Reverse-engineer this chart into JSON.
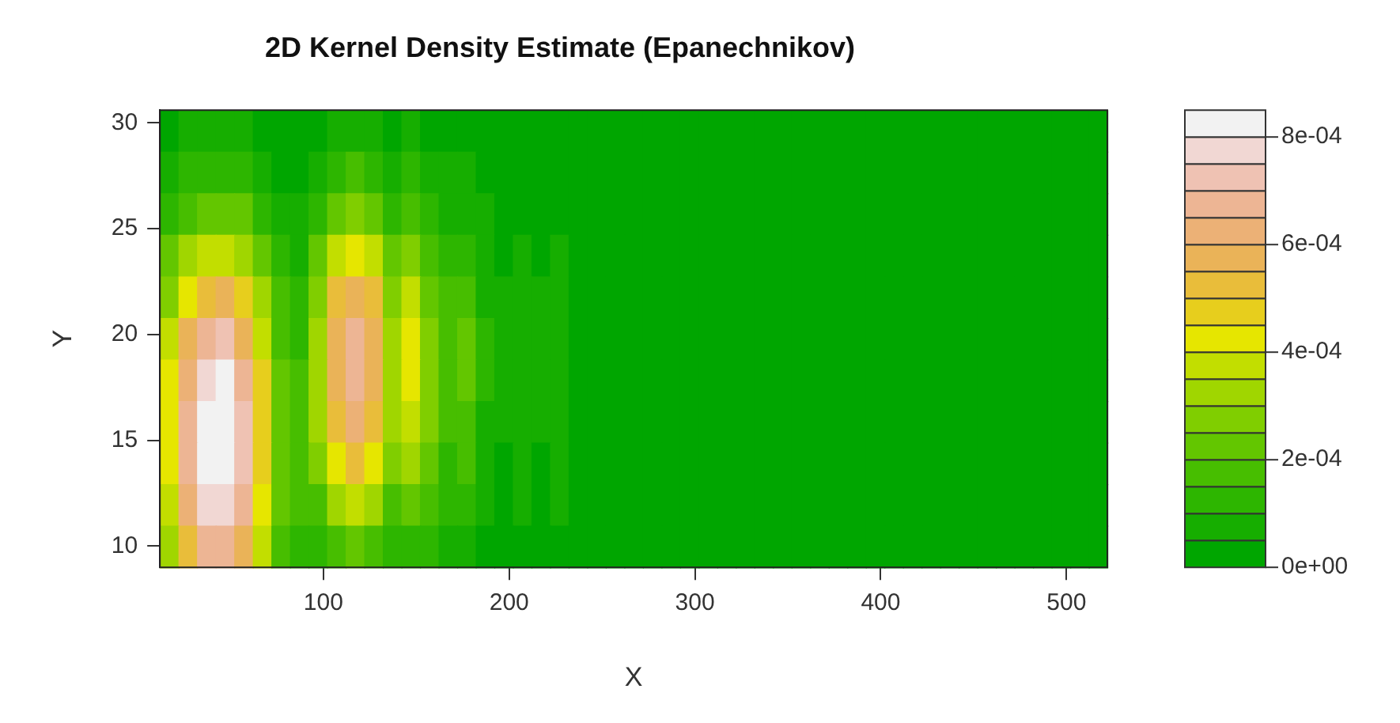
{
  "chart_data": {
    "type": "heatmap",
    "title": "2D Kernel Density Estimate (Epanechnikov)",
    "xlabel": "X",
    "ylabel": "Y",
    "x": [
      17,
      27,
      37,
      47,
      57,
      67,
      77,
      87,
      97,
      107,
      117,
      127,
      137,
      147,
      157,
      167,
      177,
      187,
      197,
      207,
      217,
      227,
      237,
      247,
      257,
      267,
      277,
      287,
      297,
      307,
      317,
      327,
      337,
      347,
      357,
      367,
      377,
      387,
      397,
      407,
      417,
      427,
      437,
      447,
      457,
      467,
      477,
      487,
      497,
      507,
      517
    ],
    "y": [
      29.62,
      27.66,
      25.69,
      23.73,
      21.76,
      19.8,
      17.84,
      15.87,
      13.91,
      11.95,
      9.98
    ],
    "xlim": [
      12,
      522
    ],
    "xticks": [
      100,
      200,
      300,
      400,
      500
    ],
    "ylim": [
      9,
      30.6
    ],
    "yticks": [
      10,
      15,
      20,
      25,
      30
    ],
    "clim": [
      0,
      0.00085
    ],
    "cticks": [
      {
        "value": 0,
        "label": "0e+00"
      },
      {
        "value": 0.0002,
        "label": "2e-04"
      },
      {
        "value": 0.0004,
        "label": "4e-04"
      },
      {
        "value": 0.0006,
        "label": "6e-04"
      },
      {
        "value": 0.0008,
        "label": "8e-04"
      }
    ],
    "colors": [
      "#00a600",
      "#16ae00",
      "#2db600",
      "#47be00",
      "#63c600",
      "#80ce00",
      "#a0d600",
      "#c2de00",
      "#e6e600",
      "#e7ce1d",
      "#e9bd3a",
      "#eab358",
      "#ecb176",
      "#edb594",
      "#efc2b3",
      "#f1d7d3",
      "#f2f2f2"
    ],
    "cells": [
      [
        0,
        5e-05,
        5e-05,
        5e-05,
        5e-05,
        0,
        0,
        0,
        0,
        5e-05,
        5e-05,
        5e-05,
        0,
        5e-05,
        0,
        0,
        0,
        0,
        0,
        0,
        0,
        0,
        0,
        0,
        0,
        0,
        0,
        0,
        0,
        0,
        0,
        0,
        0,
        0,
        0,
        0,
        0,
        0,
        0,
        0,
        0,
        0,
        0,
        0,
        0,
        0,
        0,
        0,
        0,
        0,
        0
      ],
      [
        5e-05,
        0.0001,
        0.0001,
        0.0001,
        0.0001,
        5e-05,
        0,
        0,
        5e-05,
        0.0001,
        0.00015,
        0.0001,
        5e-05,
        0.0001,
        5e-05,
        5e-05,
        5e-05,
        0,
        0,
        0,
        0,
        0,
        0,
        0,
        0,
        0,
        0,
        0,
        0,
        0,
        0,
        0,
        0,
        0,
        0,
        0,
        0,
        0,
        0,
        0,
        0,
        0,
        0,
        0,
        0,
        0,
        0,
        0,
        0,
        0,
        0
      ],
      [
        0.0001,
        0.00015,
        0.0002,
        0.0002,
        0.0002,
        0.0001,
        5e-05,
        5e-05,
        0.0001,
        0.0002,
        0.00025,
        0.0002,
        0.0001,
        0.00015,
        0.0001,
        5e-05,
        5e-05,
        5e-05,
        0,
        0,
        0,
        0,
        0,
        0,
        0,
        0,
        0,
        0,
        0,
        0,
        0,
        0,
        0,
        0,
        0,
        0,
        0,
        0,
        0,
        0,
        0,
        0,
        0,
        0,
        0,
        0,
        0,
        0,
        0,
        0,
        0
      ],
      [
        0.0002,
        0.0003,
        0.00035,
        0.00035,
        0.0003,
        0.0002,
        0.0001,
        5e-05,
        0.0002,
        0.00035,
        0.0004,
        0.00035,
        0.0002,
        0.00025,
        0.00015,
        0.0001,
        0.0001,
        5e-05,
        0,
        5e-05,
        0,
        5e-05,
        0,
        0,
        0,
        0,
        0,
        0,
        0,
        0,
        0,
        0,
        0,
        0,
        0,
        0,
        0,
        0,
        0,
        0,
        0,
        0,
        0,
        0,
        0,
        0,
        0,
        0,
        0,
        0,
        0
      ],
      [
        0.00025,
        0.0004,
        0.0005,
        0.00055,
        0.00045,
        0.0003,
        0.00015,
        0.0001,
        0.00025,
        0.0005,
        0.00055,
        0.0005,
        0.00025,
        0.00035,
        0.0002,
        0.00015,
        0.00015,
        5e-05,
        5e-05,
        5e-05,
        5e-05,
        5e-05,
        0,
        0,
        0,
        0,
        0,
        0,
        0,
        0,
        0,
        0,
        0,
        0,
        0,
        0,
        0,
        0,
        0,
        0,
        0,
        0,
        0,
        0,
        0,
        0,
        0,
        0,
        0,
        0,
        0
      ],
      [
        0.00035,
        0.00055,
        0.00065,
        0.0007,
        0.00055,
        0.00035,
        0.00015,
        0.0001,
        0.0003,
        0.00055,
        0.00065,
        0.00055,
        0.0003,
        0.0004,
        0.00025,
        0.00015,
        0.0002,
        0.0001,
        5e-05,
        5e-05,
        5e-05,
        5e-05,
        0,
        0,
        0,
        0,
        0,
        0,
        0,
        0,
        0,
        0,
        0,
        0,
        0,
        0,
        0,
        0,
        0,
        0,
        0,
        0,
        0,
        0,
        0,
        0,
        0,
        0,
        0,
        0,
        0
      ],
      [
        0.0004,
        0.0006,
        0.00075,
        0.0008,
        0.00065,
        0.00045,
        0.0002,
        0.00015,
        0.0003,
        0.00055,
        0.00065,
        0.00055,
        0.0003,
        0.0004,
        0.00025,
        0.00015,
        0.0002,
        0.0001,
        5e-05,
        5e-05,
        5e-05,
        5e-05,
        0,
        0,
        0,
        0,
        0,
        0,
        0,
        0,
        0,
        0,
        0,
        0,
        0,
        0,
        0,
        0,
        0,
        0,
        0,
        0,
        0,
        0,
        0,
        0,
        0,
        0,
        0,
        0,
        0
      ],
      [
        0.0004,
        0.00065,
        0.0008,
        0.00085,
        0.0007,
        0.00045,
        0.0002,
        0.00015,
        0.0003,
        0.0005,
        0.0006,
        0.0005,
        0.0003,
        0.00035,
        0.00025,
        0.00015,
        0.00015,
        5e-05,
        5e-05,
        5e-05,
        5e-05,
        5e-05,
        0,
        0,
        0,
        0,
        0,
        0,
        0,
        0,
        0,
        0,
        0,
        0,
        0,
        0,
        0,
        0,
        0,
        0,
        0,
        0,
        0,
        0,
        0,
        0,
        0,
        0,
        0,
        0,
        0
      ],
      [
        0.0004,
        0.00065,
        0.0008,
        0.00085,
        0.0007,
        0.00045,
        0.0002,
        0.00015,
        0.00025,
        0.0004,
        0.0005,
        0.0004,
        0.00025,
        0.0003,
        0.0002,
        0.0001,
        0.00015,
        5e-05,
        0,
        5e-05,
        0,
        5e-05,
        0,
        0,
        0,
        0,
        0,
        0,
        0,
        0,
        0,
        0,
        0,
        0,
        0,
        0,
        0,
        0,
        0,
        0,
        0,
        0,
        0,
        0,
        0,
        0,
        0,
        0,
        0,
        0,
        0
      ],
      [
        0.00035,
        0.0006,
        0.00075,
        0.00075,
        0.00065,
        0.0004,
        0.0002,
        0.00015,
        0.00015,
        0.0003,
        0.00035,
        0.0003,
        0.00015,
        0.0002,
        0.00015,
        0.0001,
        0.0001,
        5e-05,
        0,
        5e-05,
        0,
        5e-05,
        0,
        0,
        0,
        0,
        0,
        0,
        0,
        0,
        0,
        0,
        0,
        0,
        0,
        0,
        0,
        0,
        0,
        0,
        0,
        0,
        0,
        0,
        0,
        0,
        0,
        0,
        0,
        0,
        0
      ],
      [
        0.0003,
        0.0005,
        0.00065,
        0.00065,
        0.00055,
        0.00035,
        0.00015,
        0.0001,
        0.0001,
        0.00015,
        0.0002,
        0.00015,
        0.0001,
        0.0001,
        0.0001,
        5e-05,
        5e-05,
        0,
        0,
        0,
        0,
        0,
        0,
        0,
        0,
        0,
        0,
        0,
        0,
        0,
        0,
        0,
        0,
        0,
        0,
        0,
        0,
        0,
        0,
        0,
        0,
        0,
        0,
        0,
        0,
        0,
        0,
        0,
        0,
        0,
        0
      ]
    ]
  }
}
